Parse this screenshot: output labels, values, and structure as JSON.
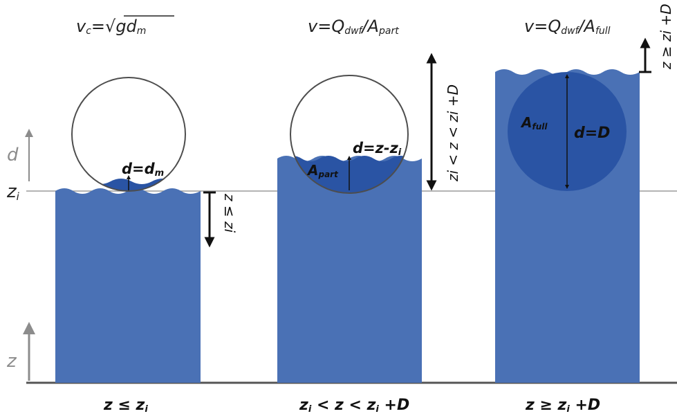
{
  "colors": {
    "water": "#4a71b5",
    "water_dark": "#2a54a4",
    "pipe_stroke": "#4d4d4d",
    "axis": "#8c8c8c",
    "text": "#1a1a1a"
  },
  "axes": {
    "d_label": "d",
    "zi_label": "z",
    "zi_sub": "i",
    "z_label": "z"
  },
  "panels": [
    {
      "formula": {
        "lhs_main": "v",
        "lhs_sub": "c",
        "eq": "=√",
        "rhs_main": "gd",
        "rhs_sub": "m"
      },
      "inner_label_main": "d=d",
      "inner_label_sub": "m",
      "side_label": "z ≤ zi",
      "bottom_parts": [
        "z ≤ z",
        "i"
      ]
    },
    {
      "formula": {
        "lhs_main": "v",
        "eq": "=Q",
        "q_sub": "dwf",
        "slash": "/A",
        "a_sub": "part"
      },
      "inner_label_main": "d=z-z",
      "inner_label_sub": "i",
      "area_label_main": "A",
      "area_label_sub": "part",
      "side_label": "zi < z < zi +D",
      "bottom_parts": [
        "z",
        "i",
        " < z < z",
        "i",
        " +D"
      ]
    },
    {
      "formula": {
        "lhs_main": "v",
        "eq": "=Q",
        "q_sub": "dwf",
        "slash": "/A",
        "a_sub": "full"
      },
      "inner_label_main": "d=D",
      "area_label_main": "A",
      "area_label_sub": "full",
      "side_label": "z ≥ zi +D",
      "bottom_parts": [
        "z ≥ z",
        "i",
        " +D"
      ]
    }
  ]
}
